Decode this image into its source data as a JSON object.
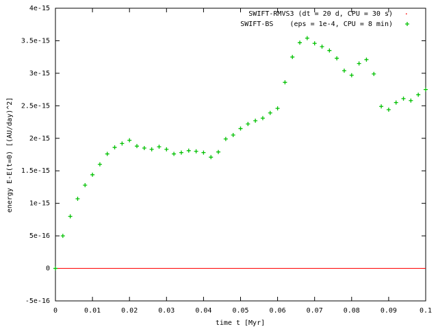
{
  "chart_data": {
    "type": "line",
    "xlabel": "time t [Myr]",
    "ylabel": "energy E-E(t=0) [(AU/day)^2]",
    "xlim": [
      0,
      0.1
    ],
    "ylim": [
      -5e-16,
      4e-15
    ],
    "xticks": [
      0,
      0.01,
      0.02,
      0.03,
      0.04,
      0.05,
      0.06,
      0.07,
      0.08,
      0.09,
      0.1
    ],
    "yticks": [
      -5e-16,
      0,
      5e-16,
      1e-15,
      1.5e-15,
      2e-15,
      2.5e-15,
      3e-15,
      3.5e-15,
      4e-15
    ],
    "legend": "top-right",
    "x": [
      0,
      0.002,
      0.004,
      0.006,
      0.008,
      0.01,
      0.012,
      0.014,
      0.016,
      0.018,
      0.02,
      0.022,
      0.024,
      0.026,
      0.028,
      0.03,
      0.032,
      0.034,
      0.036,
      0.038,
      0.04,
      0.042,
      0.044,
      0.046,
      0.048,
      0.05,
      0.052,
      0.054,
      0.056,
      0.058,
      0.06,
      0.062,
      0.064,
      0.066,
      0.068,
      0.07,
      0.072,
      0.074,
      0.076,
      0.078,
      0.08,
      0.082,
      0.084,
      0.086,
      0.088,
      0.09,
      0.092,
      0.094,
      0.096,
      0.098,
      0.1
    ],
    "series": [
      {
        "name": "SWIFT-RMVS3 (dt = 20 d, CPU = 30 s)",
        "color": "#ff0000",
        "marker": "line",
        "values": [
          0,
          0,
          0,
          0,
          0,
          0,
          0,
          0,
          0,
          0,
          0,
          0,
          0,
          0,
          0,
          0,
          0,
          0,
          0,
          0,
          0,
          0,
          0,
          0,
          0,
          0,
          0,
          0,
          0,
          0,
          0,
          0,
          0,
          0,
          0,
          0,
          0,
          0,
          0,
          0,
          0,
          0,
          0,
          0,
          0,
          0,
          0,
          0,
          0,
          0,
          0
        ]
      },
      {
        "name": "SWIFT-BS    (eps = 1e-4, CPU = 8 min)",
        "color": "#00c000",
        "marker": "plus",
        "values": [
          0,
          5e-16,
          8e-16,
          1.07e-15,
          1.28e-15,
          1.44e-15,
          1.6e-15,
          1.76e-15,
          1.86e-15,
          1.92e-15,
          1.97e-15,
          1.88e-15,
          1.85e-15,
          1.83e-15,
          1.87e-15,
          1.83e-15,
          1.76e-15,
          1.78e-15,
          1.81e-15,
          1.8e-15,
          1.78e-15,
          1.71e-15,
          1.79e-15,
          1.99e-15,
          2.05e-15,
          2.15e-15,
          2.22e-15,
          2.27e-15,
          2.31e-15,
          2.39e-15,
          2.46e-15,
          2.86e-15,
          3.25e-15,
          3.47e-15,
          3.54e-15,
          3.46e-15,
          3.41e-15,
          3.35e-15,
          3.23e-15,
          3.04e-15,
          2.97e-15,
          3.15e-15,
          3.21e-15,
          2.99e-15,
          2.49e-15,
          2.44e-15,
          2.55e-15,
          2.61e-15,
          2.58e-15,
          2.67e-15,
          2.75e-15
        ]
      }
    ]
  }
}
